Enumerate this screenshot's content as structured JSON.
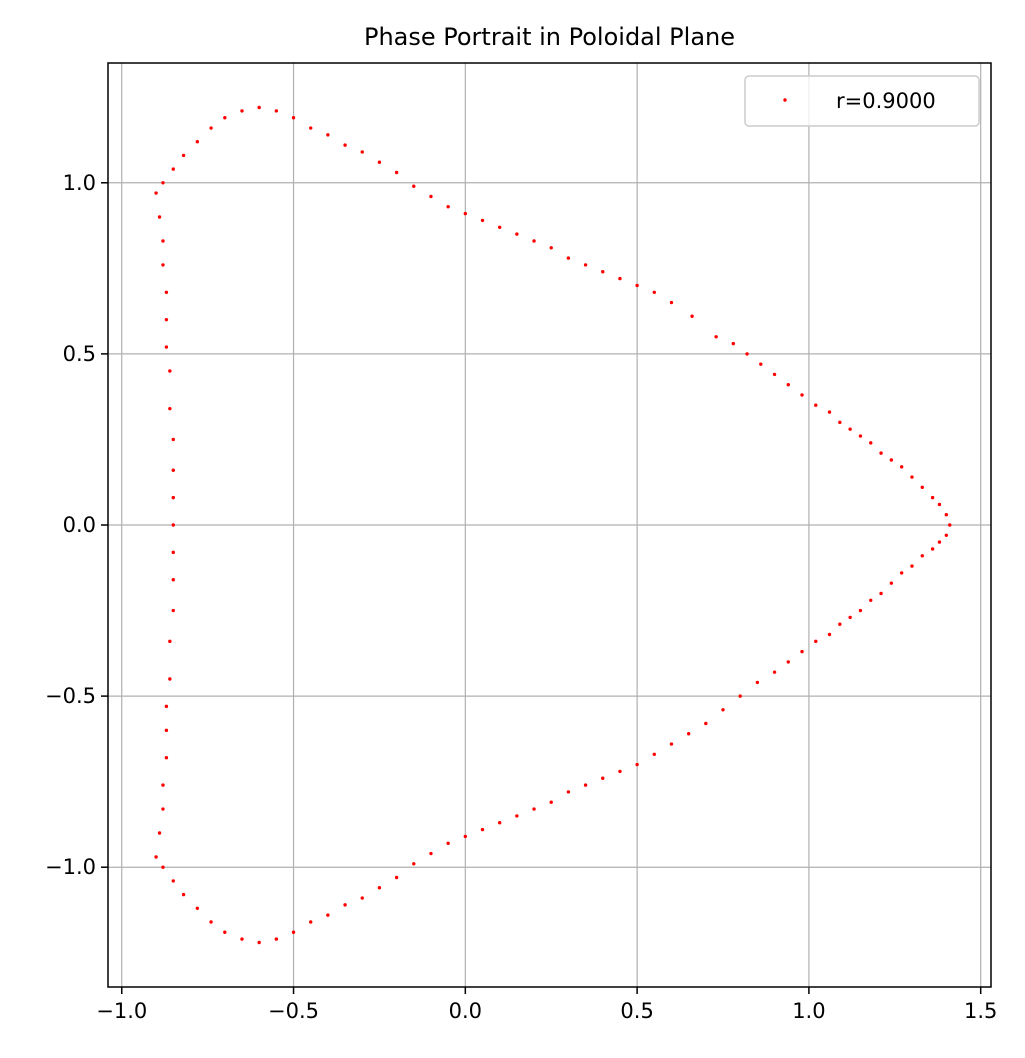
{
  "chart_data": {
    "type": "scatter",
    "title": "Phase Portrait in Poloidal Plane",
    "xlabel": "",
    "ylabel": "",
    "xlim": [
      -1.04,
      1.53
    ],
    "ylim": [
      -1.35,
      1.35
    ],
    "x_ticks": [
      -1.0,
      -0.5,
      0.0,
      0.5,
      1.0,
      1.5
    ],
    "x_tick_labels": [
      "−1.0",
      "−0.5",
      "0.0",
      "0.5",
      "1.0",
      "1.5"
    ],
    "y_ticks": [
      -1.0,
      -0.5,
      0.0,
      0.5,
      1.0
    ],
    "y_tick_labels": [
      "−1.0",
      "−0.5",
      "0.0",
      "0.5",
      "1.0"
    ],
    "grid": true,
    "legend_position": "top-right",
    "series": [
      {
        "name": "r=0.9000",
        "color": "#ff0000",
        "marker": "point",
        "points": [
          [
            1.41,
            0.0
          ],
          [
            1.4,
            0.03
          ],
          [
            1.38,
            0.06
          ],
          [
            1.36,
            0.08
          ],
          [
            1.33,
            0.11
          ],
          [
            1.3,
            0.14
          ],
          [
            1.27,
            0.17
          ],
          [
            1.24,
            0.19
          ],
          [
            1.21,
            0.21
          ],
          [
            1.18,
            0.24
          ],
          [
            1.15,
            0.26
          ],
          [
            1.12,
            0.28
          ],
          [
            1.09,
            0.3
          ],
          [
            1.06,
            0.33
          ],
          [
            1.02,
            0.35
          ],
          [
            0.98,
            0.38
          ],
          [
            0.94,
            0.41
          ],
          [
            0.9,
            0.44
          ],
          [
            0.86,
            0.47
          ],
          [
            0.82,
            0.5
          ],
          [
            0.78,
            0.53
          ],
          [
            0.73,
            0.55
          ],
          [
            0.66,
            0.61
          ],
          [
            0.6,
            0.65
          ],
          [
            0.55,
            0.68
          ],
          [
            0.5,
            0.7
          ],
          [
            0.45,
            0.72
          ],
          [
            0.4,
            0.74
          ],
          [
            0.35,
            0.76
          ],
          [
            0.3,
            0.78
          ],
          [
            0.25,
            0.81
          ],
          [
            0.2,
            0.83
          ],
          [
            0.15,
            0.85
          ],
          [
            0.1,
            0.87
          ],
          [
            0.05,
            0.89
          ],
          [
            0.0,
            0.91
          ],
          [
            -0.05,
            0.93
          ],
          [
            -0.1,
            0.96
          ],
          [
            -0.15,
            0.99
          ],
          [
            -0.2,
            1.03
          ],
          [
            -0.25,
            1.06
          ],
          [
            -0.3,
            1.09
          ],
          [
            -0.35,
            1.11
          ],
          [
            -0.4,
            1.14
          ],
          [
            -0.45,
            1.16
          ],
          [
            -0.5,
            1.19
          ],
          [
            -0.55,
            1.21
          ],
          [
            -0.6,
            1.22
          ],
          [
            -0.65,
            1.21
          ],
          [
            -0.7,
            1.19
          ],
          [
            -0.74,
            1.16
          ],
          [
            -0.78,
            1.12
          ],
          [
            -0.82,
            1.08
          ],
          [
            -0.85,
            1.04
          ],
          [
            -0.88,
            1.0
          ],
          [
            -0.9,
            0.97
          ],
          [
            -0.89,
            0.9
          ],
          [
            -0.88,
            0.83
          ],
          [
            -0.88,
            0.76
          ],
          [
            -0.87,
            0.68
          ],
          [
            -0.87,
            0.6
          ],
          [
            -0.87,
            0.52
          ],
          [
            -0.86,
            0.45
          ],
          [
            -0.86,
            0.34
          ],
          [
            -0.85,
            0.25
          ],
          [
            -0.85,
            0.16
          ],
          [
            -0.85,
            0.08
          ],
          [
            -0.85,
            0.0
          ],
          [
            -0.85,
            -0.08
          ],
          [
            -0.85,
            -0.16
          ],
          [
            -0.85,
            -0.25
          ],
          [
            -0.86,
            -0.34
          ],
          [
            -0.86,
            -0.45
          ],
          [
            -0.87,
            -0.53
          ],
          [
            -0.87,
            -0.6
          ],
          [
            -0.87,
            -0.68
          ],
          [
            -0.88,
            -0.76
          ],
          [
            -0.88,
            -0.83
          ],
          [
            -0.89,
            -0.9
          ],
          [
            -0.9,
            -0.97
          ],
          [
            -0.88,
            -1.0
          ],
          [
            -0.85,
            -1.04
          ],
          [
            -0.82,
            -1.08
          ],
          [
            -0.78,
            -1.12
          ],
          [
            -0.74,
            -1.16
          ],
          [
            -0.7,
            -1.19
          ],
          [
            -0.65,
            -1.21
          ],
          [
            -0.6,
            -1.22
          ],
          [
            -0.55,
            -1.21
          ],
          [
            -0.5,
            -1.19
          ],
          [
            -0.45,
            -1.16
          ],
          [
            -0.4,
            -1.14
          ],
          [
            -0.35,
            -1.11
          ],
          [
            -0.3,
            -1.09
          ],
          [
            -0.25,
            -1.06
          ],
          [
            -0.2,
            -1.03
          ],
          [
            -0.15,
            -0.99
          ],
          [
            -0.1,
            -0.96
          ],
          [
            -0.05,
            -0.93
          ],
          [
            0.0,
            -0.91
          ],
          [
            0.05,
            -0.89
          ],
          [
            0.1,
            -0.87
          ],
          [
            0.15,
            -0.85
          ],
          [
            0.2,
            -0.83
          ],
          [
            0.25,
            -0.81
          ],
          [
            0.3,
            -0.78
          ],
          [
            0.35,
            -0.76
          ],
          [
            0.4,
            -0.74
          ],
          [
            0.45,
            -0.72
          ],
          [
            0.5,
            -0.7
          ],
          [
            0.55,
            -0.67
          ],
          [
            0.6,
            -0.64
          ],
          [
            0.65,
            -0.61
          ],
          [
            0.7,
            -0.58
          ],
          [
            0.75,
            -0.54
          ],
          [
            0.8,
            -0.5
          ],
          [
            0.85,
            -0.46
          ],
          [
            0.9,
            -0.43
          ],
          [
            0.94,
            -0.4
          ],
          [
            0.98,
            -0.37
          ],
          [
            1.02,
            -0.34
          ],
          [
            1.06,
            -0.32
          ],
          [
            1.09,
            -0.29
          ],
          [
            1.12,
            -0.27
          ],
          [
            1.15,
            -0.25
          ],
          [
            1.18,
            -0.22
          ],
          [
            1.21,
            -0.2
          ],
          [
            1.24,
            -0.17
          ],
          [
            1.27,
            -0.14
          ],
          [
            1.3,
            -0.12
          ],
          [
            1.33,
            -0.09
          ],
          [
            1.36,
            -0.07
          ],
          [
            1.38,
            -0.05
          ],
          [
            1.4,
            -0.03
          ]
        ]
      }
    ]
  }
}
